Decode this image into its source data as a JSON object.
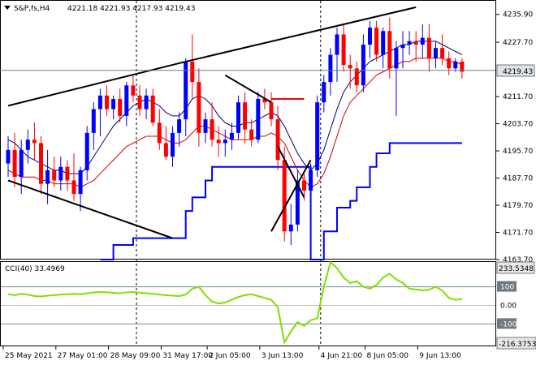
{
  "header": {
    "symbol": "S&P,fs,H4",
    "ohlc": "4221.18 4221.93 4217.93 4219.43"
  },
  "indicator": {
    "label": "CCI(40) 33.4969",
    "top_value": "233.5348",
    "bottom_value": "-216.3753",
    "levels": [
      "100",
      "0.00",
      "-100"
    ]
  },
  "price_axis": {
    "ticks": [
      "4235.90",
      "4227.70",
      "4219.43",
      "4211.70",
      "4203.70",
      "4195.70",
      "4187.70",
      "4179.70",
      "4171.70",
      "4163.70"
    ],
    "current_price": "4219.43"
  },
  "time_axis": {
    "labels": [
      "25 May 2021",
      "27 May 01:00",
      "28 May 09:00",
      "31 May 17:00",
      "2 Jun 05:00",
      "3 Jun 13:00",
      "4 Jun 21:00",
      "8 Jun 05:00",
      "9 Jun 13:00"
    ]
  },
  "colors": {
    "bull": "#0000ff",
    "bear": "#ff0000",
    "navy_ma": "#000080",
    "red_ma": "#cc0000",
    "support": "#0000ff",
    "cci": "#7fdf00",
    "trend": "#000000"
  },
  "chart_data": {
    "type": "candlestick",
    "symbol": "S&P,fs,H4",
    "ylim": [
      4163.7,
      4239.9
    ],
    "candles": [
      [
        4192,
        4200,
        4188,
        4196
      ],
      [
        4196,
        4201,
        4185,
        4188
      ],
      [
        4188,
        4199,
        4183,
        4196
      ],
      [
        4196,
        4202,
        4192,
        4199
      ],
      [
        4199,
        4204,
        4193,
        4198
      ],
      [
        4198,
        4200,
        4183,
        4186
      ],
      [
        4186,
        4196,
        4180,
        4190
      ],
      [
        4190,
        4194,
        4185,
        4187
      ],
      [
        4187,
        4194,
        4184,
        4191
      ],
      [
        4191,
        4193,
        4184,
        4187
      ],
      [
        4187,
        4195,
        4181,
        4183
      ],
      [
        4183,
        4191,
        4178,
        4190
      ],
      [
        4190,
        4203,
        4187,
        4201
      ],
      [
        4201,
        4210,
        4196,
        4208
      ],
      [
        4208,
        4214,
        4200,
        4212
      ],
      [
        4212,
        4215,
        4206,
        4208
      ],
      [
        4208,
        4212,
        4205,
        4211
      ],
      [
        4211,
        4214,
        4204,
        4206
      ],
      [
        4206,
        4216,
        4203,
        4215
      ],
      [
        4215,
        4218,
        4210,
        4212
      ],
      [
        4212,
        4215,
        4206,
        4208
      ],
      [
        4208,
        4214,
        4205,
        4212
      ],
      [
        4212,
        4214,
        4203,
        4204
      ],
      [
        4204,
        4208,
        4196,
        4198
      ],
      [
        4198,
        4203,
        4193,
        4194
      ],
      [
        4194,
        4203,
        4191,
        4201
      ],
      [
        4201,
        4207,
        4197,
        4205
      ],
      [
        4205,
        4223,
        4200,
        4222
      ],
      [
        4222,
        4230,
        4211,
        4216
      ],
      [
        4216,
        4220,
        4197,
        4201
      ],
      [
        4201,
        4207,
        4198,
        4205
      ],
      [
        4205,
        4210,
        4197,
        4199
      ],
      [
        4199,
        4203,
        4194,
        4198
      ],
      [
        4198,
        4202,
        4194,
        4199
      ],
      [
        4199,
        4204,
        4196,
        4201
      ],
      [
        4201,
        4212,
        4199,
        4210
      ],
      [
        4210,
        4213,
        4198,
        4202
      ],
      [
        4202,
        4205,
        4197,
        4199
      ],
      [
        4199,
        4213,
        4198,
        4211
      ],
      [
        4211,
        4214,
        4208,
        4210
      ],
      [
        4210,
        4213,
        4203,
        4205
      ],
      [
        4205,
        4209,
        4190,
        4193
      ],
      [
        4193,
        4197,
        4169,
        4172
      ],
      [
        4172,
        4180,
        4168,
        4174
      ],
      [
        4174,
        4190,
        4172,
        4187
      ],
      [
        4187,
        4189,
        4181,
        4184
      ],
      [
        4184,
        4192,
        4182,
        4190
      ],
      [
        4190,
        4212,
        4188,
        4210
      ],
      [
        4210,
        4218,
        4207,
        4216
      ],
      [
        4216,
        4226,
        4212,
        4224
      ],
      [
        4224,
        4232,
        4216,
        4230
      ],
      [
        4230,
        4233,
        4219,
        4221
      ],
      [
        4221,
        4224,
        4214,
        4220
      ],
      [
        4220,
        4222,
        4213,
        4215
      ],
      [
        4215,
        4230,
        4213,
        4227
      ],
      [
        4227,
        4234,
        4223,
        4232
      ],
      [
        4232,
        4234,
        4222,
        4224
      ],
      [
        4224,
        4232,
        4220,
        4231
      ],
      [
        4231,
        4235,
        4217,
        4220
      ],
      [
        4220,
        4228,
        4206,
        4226
      ],
      [
        4226,
        4231,
        4220,
        4227
      ],
      [
        4227,
        4231,
        4224,
        4228
      ],
      [
        4228,
        4231,
        4222,
        4227
      ],
      [
        4227,
        4233,
        4223,
        4229
      ],
      [
        4229,
        4233,
        4219,
        4223
      ],
      [
        4223,
        4228,
        4220,
        4226
      ],
      [
        4226,
        4230,
        4221,
        4223
      ],
      [
        4223,
        4225,
        4218,
        4220
      ],
      [
        4220,
        4223,
        4219,
        4222
      ],
      [
        4222,
        4223,
        4217,
        4219
      ]
    ],
    "ma_fast": [
      4199,
      4198,
      4196,
      4194,
      4193,
      4192,
      4191,
      4190,
      4190,
      4189,
      4189,
      4189,
      4191,
      4194,
      4197,
      4200,
      4203,
      4205,
      4207,
      4209,
      4210,
      4211,
      4210,
      4209,
      4207,
      4206,
      4206,
      4208,
      4211,
      4212,
      4211,
      4209,
      4206,
      4204,
      4203,
      4203,
      4204,
      4204,
      4205,
      4206,
      4207,
      4206,
      4203,
      4199,
      4195,
      4192,
      4190,
      4192,
      4196,
      4202,
      4208,
      4213,
      4216,
      4218,
      4220,
      4222,
      4223,
      4224,
      4225,
      4226,
      4227,
      4227,
      4228,
      4228,
      4228,
      4228,
      4227,
      4226,
      4225,
      4224
    ],
    "ma_slow": [
      4190,
      4189,
      4188,
      4188,
      4188,
      4187,
      4187,
      4186,
      4186,
      4186,
      4186,
      4185,
      4186,
      4187,
      4189,
      4191,
      4193,
      4195,
      4197,
      4198,
      4199,
      4200,
      4200,
      4200,
      4199,
      4198,
      4198,
      4199,
      4201,
      4203,
      4203,
      4202,
      4201,
      4200,
      4199,
      4199,
      4199,
      4199,
      4200,
      4200,
      4201,
      4200,
      4198,
      4194,
      4190,
      4187,
      4185,
      4186,
      4189,
      4194,
      4200,
      4206,
      4210,
      4212,
      4214,
      4216,
      4218,
      4219,
      4220,
      4221,
      4222,
      4222,
      4223,
      4223,
      4223,
      4223,
      4223,
      4222,
      4222,
      4221
    ],
    "support_steps": [
      [
        14,
        4163.7
      ],
      [
        16,
        4168
      ],
      [
        19,
        4170
      ],
      [
        27,
        4178
      ],
      [
        28,
        4182
      ],
      [
        30,
        4187
      ],
      [
        31,
        4191
      ],
      [
        40,
        4191
      ],
      [
        46,
        4163.7
      ],
      [
        48,
        4172
      ],
      [
        50,
        4179
      ],
      [
        52,
        4181
      ],
      [
        53,
        4185
      ],
      [
        55,
        4191
      ],
      [
        56,
        4195
      ],
      [
        58,
        4198
      ],
      [
        69,
        4198
      ]
    ],
    "red_segment": [
      [
        40,
        4211
      ],
      [
        45,
        4211
      ]
    ],
    "trendlines": [
      {
        "p1": [
          0,
          4209
        ],
        "p2": [
          27,
          4222
        ]
      },
      {
        "p1": [
          27,
          4222
        ],
        "p2": [
          62,
          4238
        ]
      },
      {
        "p1": [
          0,
          4187
        ],
        "p2": [
          25,
          4170
        ]
      },
      {
        "p1": [
          33,
          4218
        ],
        "p2": [
          40,
          4210
        ]
      },
      {
        "p1": [
          40,
          4172
        ],
        "p2": [
          46,
          4193
        ]
      },
      {
        "p1": [
          41,
          4197
        ],
        "p2": [
          45,
          4182
        ]
      }
    ],
    "cci": [
      60,
      55,
      62,
      58,
      50,
      48,
      52,
      55,
      58,
      60,
      62,
      60,
      65,
      70,
      72,
      70,
      68,
      65,
      70,
      72,
      68,
      65,
      62,
      58,
      55,
      52,
      50,
      58,
      90,
      100,
      55,
      20,
      10,
      15,
      30,
      45,
      55,
      60,
      50,
      40,
      30,
      -10,
      -200,
      -140,
      -90,
      -110,
      -80,
      -70,
      100,
      233,
      200,
      150,
      120,
      130,
      100,
      90,
      110,
      150,
      170,
      140,
      120,
      90,
      85,
      80,
      85,
      100,
      80,
      40,
      30,
      33.5
    ],
    "cci_range": [
      -216.3753,
      233.5348
    ],
    "cci_levels": [
      100,
      0,
      -100
    ]
  }
}
